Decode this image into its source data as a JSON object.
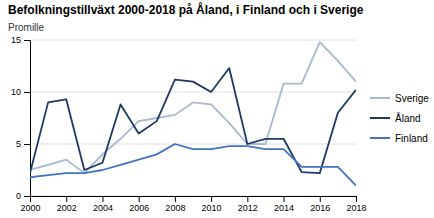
{
  "chart_data": {
    "type": "line",
    "title": "Befolkningstillväxt 2000-2018 på Åland, i Finland och i Sverige",
    "ylabel": "Promille",
    "x": [
      2000,
      2001,
      2002,
      2003,
      2004,
      2005,
      2006,
      2007,
      2008,
      2009,
      2010,
      2011,
      2012,
      2013,
      2014,
      2015,
      2016,
      2017,
      2018
    ],
    "series": [
      {
        "name": "Sverige",
        "color": "#a6b8d4",
        "values": [
          2.5,
          3.0,
          3.5,
          2.2,
          4.0,
          5.5,
          7.2,
          7.5,
          7.8,
          9.0,
          8.8,
          7.0,
          5.0,
          5.0,
          10.8,
          10.8,
          14.8,
          13.0,
          11.0
        ]
      },
      {
        "name": "Åland",
        "color": "#1f3864",
        "values": [
          2.2,
          9.0,
          9.3,
          2.5,
          3.2,
          8.8,
          6.0,
          7.2,
          11.2,
          11.0,
          10.0,
          12.3,
          5.0,
          5.5,
          5.5,
          2.3,
          2.2,
          8.0,
          10.2
        ]
      },
      {
        "name": "Finland",
        "color": "#4472c4",
        "values": [
          1.8,
          2.0,
          2.2,
          2.2,
          2.5,
          3.0,
          3.5,
          4.0,
          5.0,
          4.5,
          4.5,
          4.8,
          4.8,
          4.5,
          4.5,
          2.8,
          2.8,
          2.8,
          1.0
        ]
      }
    ],
    "xlim": [
      2000,
      2018
    ],
    "xticks": [
      2000,
      2002,
      2004,
      2006,
      2008,
      2010,
      2012,
      2014,
      2016,
      2018
    ],
    "ylim": [
      0,
      15
    ],
    "yticks": [
      0,
      5,
      10,
      15
    ],
    "grid": true,
    "legend": "right"
  }
}
